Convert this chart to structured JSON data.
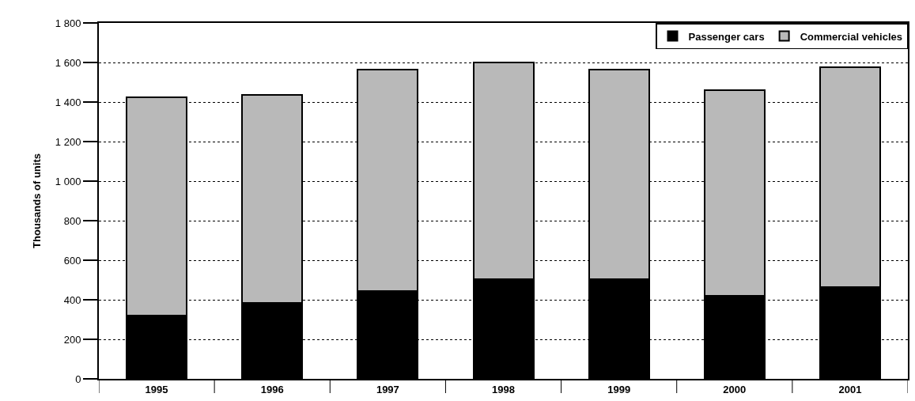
{
  "chart_data": {
    "type": "bar",
    "stacked": true,
    "ylabel": "Thousands of units",
    "categories": [
      "1995",
      "1996",
      "1997",
      "1998",
      "1999",
      "2000",
      "2001"
    ],
    "series": [
      {
        "name": "Passenger cars",
        "color": "#000000",
        "values": [
          320,
          385,
          445,
          505,
          505,
          420,
          465
        ]
      },
      {
        "name": "Commercial vehicles",
        "color": "#b9b9b9",
        "values": [
          1105,
          1050,
          1120,
          1095,
          1060,
          1040,
          1110
        ]
      }
    ],
    "ylim": [
      0,
      1800
    ],
    "yticks": [
      0,
      200,
      400,
      600,
      800,
      {
        "value": 1000,
        "label": "1 000"
      },
      {
        "value": 1200,
        "label": "1 200"
      },
      {
        "value": 1400,
        "label": "1 400"
      },
      {
        "value": 1600,
        "label": "1 600"
      },
      {
        "value": 1800,
        "label": "1 800"
      }
    ],
    "grid": "y",
    "legend": "top right"
  }
}
